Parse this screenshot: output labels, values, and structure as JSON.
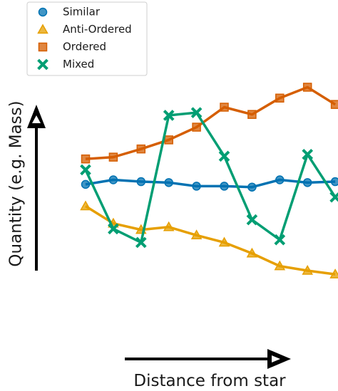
{
  "chart_data": {
    "type": "line",
    "xlabel": "Distance from star",
    "ylabel": "Quantity (e.g. Mass)",
    "x": [
      1,
      2,
      3,
      4,
      5,
      6,
      7,
      8,
      9,
      10
    ],
    "ylim": [
      0,
      10
    ],
    "grid": false,
    "legend_position": "top-left",
    "axis_ticks": false,
    "axis_style": "arrows",
    "series": [
      {
        "name": "Similar",
        "marker": "circle",
        "color": "#0072B2",
        "values": [
          4.75,
          5.0,
          4.9,
          4.85,
          4.65,
          4.65,
          4.6,
          5.0,
          4.85,
          4.9
        ]
      },
      {
        "name": "Anti-Ordered",
        "marker": "triangle",
        "color": "#E69F00",
        "values": [
          3.55,
          2.6,
          2.25,
          2.4,
          1.95,
          1.55,
          0.95,
          0.25,
          0.0,
          -0.2
        ]
      },
      {
        "name": "Ordered",
        "marker": "square",
        "color": "#D55E00",
        "values": [
          6.15,
          6.25,
          6.7,
          7.2,
          7.9,
          9.0,
          8.6,
          9.5,
          10.1,
          9.15
        ]
      },
      {
        "name": "Mixed",
        "marker": "x",
        "color": "#009E73",
        "values": [
          5.55,
          2.3,
          1.55,
          8.55,
          8.7,
          6.3,
          2.8,
          1.7,
          6.4,
          4.05
        ]
      }
    ]
  }
}
